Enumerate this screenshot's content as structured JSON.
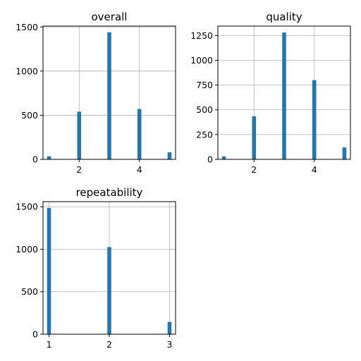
{
  "chart_data": [
    {
      "type": "bar",
      "title": "overall",
      "xlabel": "",
      "ylabel": "",
      "xlim": [
        0.8,
        5.2
      ],
      "ylim": [
        0,
        1510
      ],
      "xticks": [
        2,
        4
      ],
      "yticks": [
        0,
        500,
        1000,
        1500
      ],
      "x": [
        1,
        2,
        3,
        4,
        5
      ],
      "values": [
        35,
        540,
        1440,
        570,
        80
      ],
      "bar_width": 0.13,
      "grid": true,
      "color": "#1f77b4"
    },
    {
      "type": "bar",
      "title": "quality",
      "xlabel": "",
      "ylabel": "",
      "xlim": [
        0.8,
        5.2
      ],
      "ylim": [
        0,
        1345
      ],
      "xticks": [
        2,
        4
      ],
      "yticks": [
        0,
        250,
        500,
        750,
        1000,
        1250
      ],
      "x": [
        1,
        2,
        3,
        4,
        5
      ],
      "values": [
        30,
        435,
        1280,
        800,
        120
      ],
      "bar_width": 0.13,
      "grid": true,
      "color": "#1f77b4"
    },
    {
      "type": "bar",
      "title": "repeatability",
      "xlabel": "",
      "ylabel": "",
      "xlim": [
        0.9,
        3.1
      ],
      "ylim": [
        0,
        1560
      ],
      "xticks": [
        1,
        2,
        3
      ],
      "yticks": [
        0,
        500,
        1000,
        1500
      ],
      "x": [
        1,
        2,
        3
      ],
      "values": [
        1485,
        1025,
        145
      ],
      "bar_width": 0.065,
      "grid": true,
      "color": "#1f77b4"
    }
  ]
}
